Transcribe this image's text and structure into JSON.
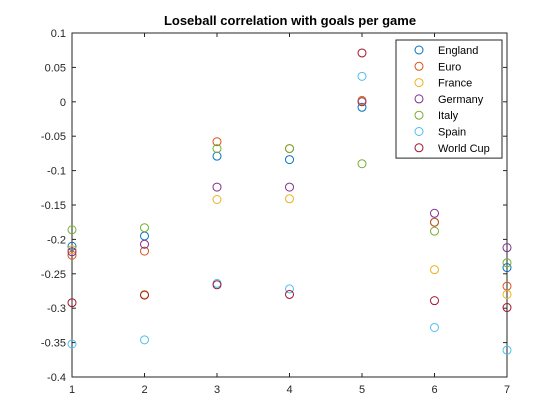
{
  "chart_data": {
    "type": "scatter",
    "title": "Loseball correlation with goals per game",
    "xlabel": "",
    "ylabel": "",
    "xlim": [
      1,
      7
    ],
    "ylim": [
      -0.4,
      0.1
    ],
    "xticks": [
      1,
      2,
      3,
      4,
      5,
      6,
      7
    ],
    "xtick_labels": [
      "1",
      "2",
      "3",
      "4",
      "5",
      "6",
      "7"
    ],
    "yticks": [
      0.1,
      0.05,
      0,
      -0.05,
      -0.1,
      -0.15,
      -0.2,
      -0.25,
      -0.3,
      -0.35,
      -0.4
    ],
    "ytick_labels": [
      "0.1",
      "0.05",
      "0",
      "-0.05",
      "-0.1",
      "-0.15",
      "-0.2",
      "-0.25",
      "-0.3",
      "-0.35",
      "-0.4"
    ],
    "grid": false,
    "legend_position": "top-right",
    "x": [
      1,
      2,
      3,
      4,
      5,
      6,
      7
    ],
    "series": [
      {
        "name": "England",
        "color": "#0072BD",
        "values": [
          -0.21,
          -0.195,
          -0.079,
          -0.084,
          -0.008,
          -0.175,
          -0.241
        ]
      },
      {
        "name": "Euro",
        "color": "#D95319",
        "values": [
          -0.223,
          -0.217,
          -0.058,
          -0.068,
          0.002,
          -0.175,
          -0.268
        ]
      },
      {
        "name": "France",
        "color": "#EDB120",
        "values": [
          -0.215,
          -0.28,
          -0.142,
          -0.141,
          0.001,
          -0.244,
          -0.28
        ]
      },
      {
        "name": "Germany",
        "color": "#7E2F8E",
        "values": [
          -0.218,
          -0.207,
          -0.124,
          -0.124,
          0.0,
          -0.162,
          -0.212
        ]
      },
      {
        "name": "Italy",
        "color": "#77AC30",
        "values": [
          -0.186,
          -0.183,
          -0.068,
          -0.068,
          -0.09,
          -0.188,
          -0.234
        ]
      },
      {
        "name": "Spain",
        "color": "#4DBEEE",
        "values": [
          -0.352,
          -0.346,
          -0.264,
          -0.272,
          0.037,
          -0.328,
          -0.361
        ]
      },
      {
        "name": "World Cup",
        "color": "#A2142F",
        "values": [
          -0.292,
          -0.281,
          -0.266,
          -0.28,
          0.071,
          -0.289,
          -0.299
        ]
      }
    ]
  }
}
